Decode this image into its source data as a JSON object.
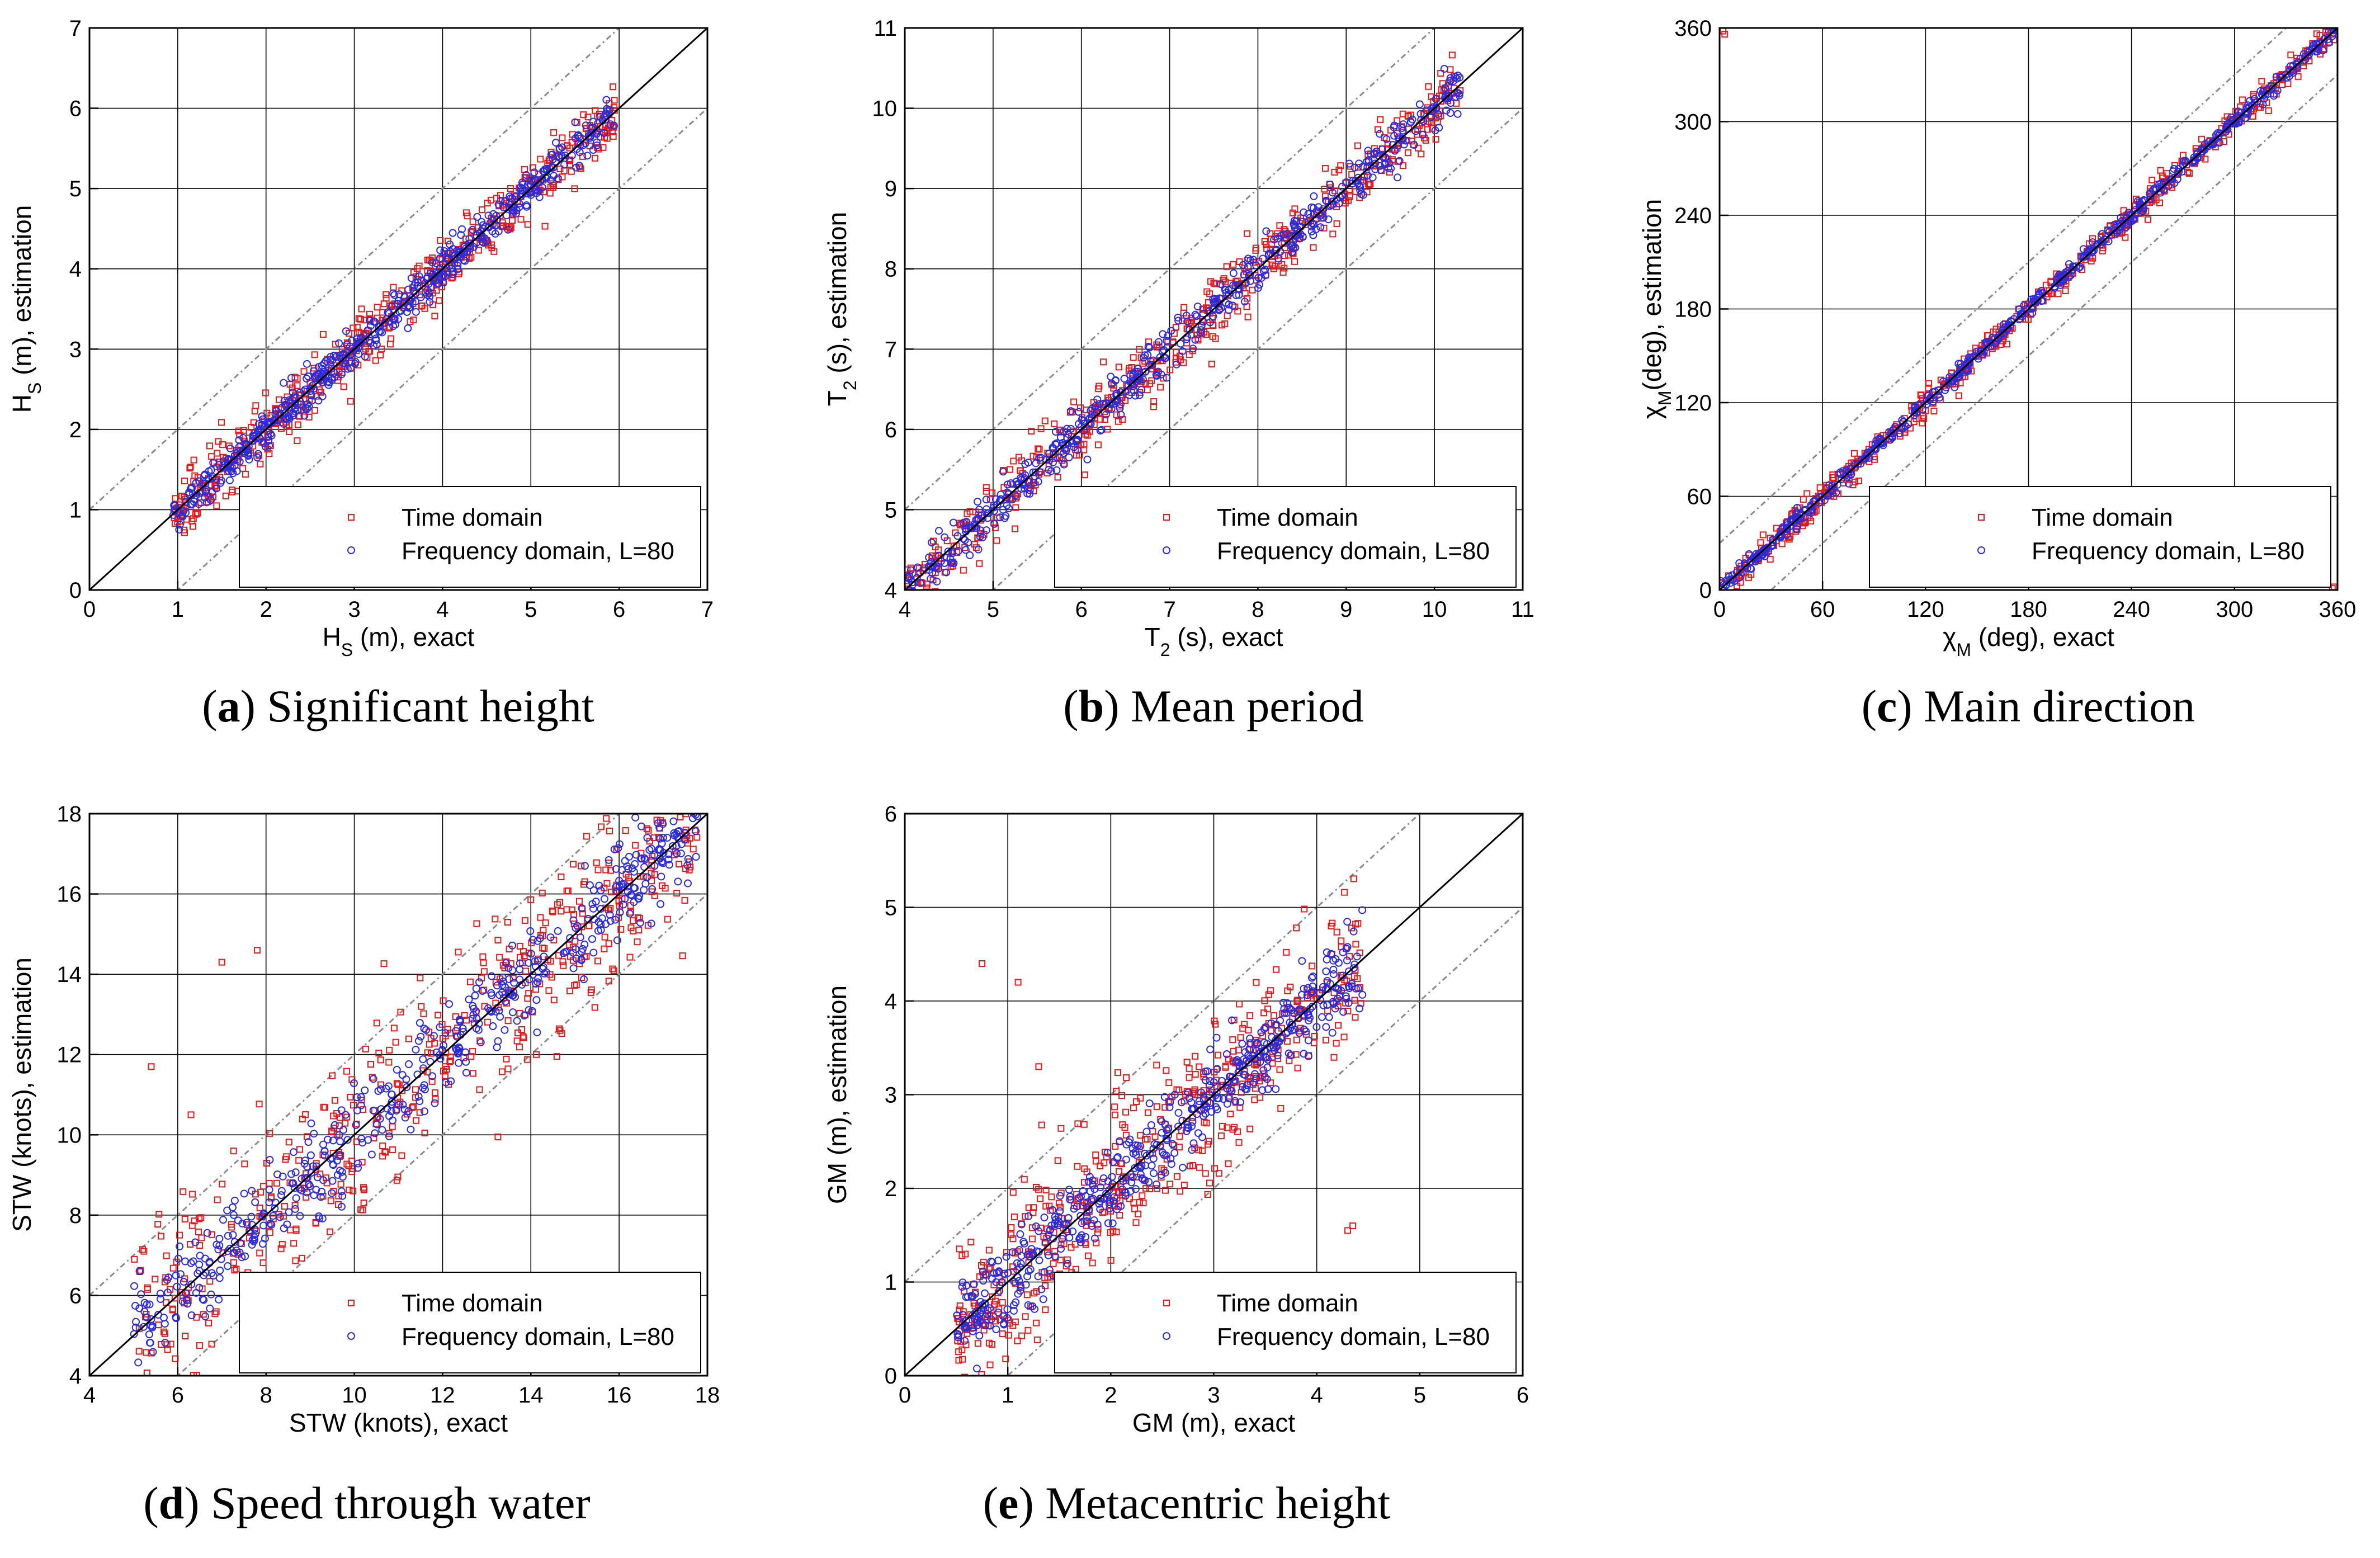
{
  "chart_data": [
    {
      "type": "scatter",
      "panel": "a",
      "caption_letter": "a",
      "caption_text": "Significant height",
      "xlabel_main": "H",
      "xlabel_sub": "S",
      "xlabel_rest": " (m), exact",
      "ylabel_main": "H",
      "ylabel_sub": "S",
      "ylabel_rest": " (m), estimation",
      "xlim": [
        0,
        7
      ],
      "ylim": [
        0,
        7
      ],
      "ticks": [
        "0",
        "1",
        "2",
        "3",
        "4",
        "5",
        "6",
        "7"
      ],
      "tick_values": [
        0,
        1,
        2,
        3,
        4,
        5,
        6,
        7
      ],
      "data_range": [
        0.95,
        5.95
      ],
      "band_offset": 1,
      "spread_time": 0.18,
      "spread_freq": 0.12,
      "outliers": [],
      "series": [
        {
          "name": "Time domain",
          "color": "#e31a1c",
          "marker": "square"
        },
        {
          "name": "Frequency domain, L=80",
          "color": "#2b2bd9",
          "marker": "circle"
        }
      ]
    },
    {
      "type": "scatter",
      "panel": "b",
      "caption_letter": "b",
      "caption_text": "Mean period",
      "xlabel_main": "T",
      "xlabel_sub": "2",
      "xlabel_rest": " (s), exact",
      "ylabel_main": "T",
      "ylabel_sub": "2",
      "ylabel_rest": " (s), estimation",
      "xlim": [
        4,
        11
      ],
      "ylim": [
        4,
        11
      ],
      "ticks": [
        "4",
        "5",
        "6",
        "7",
        "8",
        "9",
        "10",
        "11"
      ],
      "tick_values": [
        4,
        5,
        6,
        7,
        8,
        9,
        10,
        11
      ],
      "data_range": [
        4.0,
        10.3
      ],
      "band_offset": 1,
      "spread_time": 0.22,
      "spread_freq": 0.14,
      "outliers": [],
      "series": [
        {
          "name": "Time domain",
          "color": "#e31a1c",
          "marker": "square"
        },
        {
          "name": "Frequency domain, L=80",
          "color": "#2b2bd9",
          "marker": "circle"
        }
      ]
    },
    {
      "type": "scatter",
      "panel": "c",
      "caption_letter": "c",
      "caption_text": "Main direction",
      "xlabel_main": "χ",
      "xlabel_sub": "M",
      "xlabel_rest": " (deg), exact",
      "ylabel_main": "χ",
      "ylabel_sub": "M",
      "ylabel_rest": "(deg), estimation",
      "xlim": [
        0,
        360
      ],
      "ylim": [
        0,
        360
      ],
      "ticks": [
        "0",
        "60",
        "120",
        "180",
        "240",
        "300",
        "360"
      ],
      "tick_values": [
        0,
        60,
        120,
        180,
        240,
        300,
        360
      ],
      "data_range": [
        0,
        358
      ],
      "band_offset": 30,
      "spread_time": 4.5,
      "spread_freq": 2.5,
      "outliers": [
        [
          2,
          358
        ],
        [
          358,
          2
        ],
        [
          357,
          1
        ],
        [
          3,
          356
        ]
      ],
      "series": [
        {
          "name": "Time domain",
          "color": "#e31a1c",
          "marker": "square"
        },
        {
          "name": "Frequency domain, L=80",
          "color": "#2b2bd9",
          "marker": "circle"
        }
      ]
    },
    {
      "type": "scatter",
      "panel": "d",
      "caption_letter": "d",
      "caption_text": "Speed through water",
      "xlabel_main": "STW (knots), exact",
      "xlabel_sub": "",
      "xlabel_rest": "",
      "ylabel_main": "STW (knots), estimation",
      "ylabel_sub": "",
      "ylabel_rest": "",
      "xlim": [
        4,
        18
      ],
      "ylim": [
        4,
        18
      ],
      "ticks": [
        "4",
        "6",
        "8",
        "10",
        "12",
        "14",
        "16",
        "18"
      ],
      "tick_values": [
        4,
        6,
        8,
        10,
        12,
        14,
        16,
        18
      ],
      "data_range": [
        5.0,
        17.8
      ],
      "band_offset": 2,
      "spread_time": 1.1,
      "spread_freq": 0.55,
      "outliers": [
        [
          7.0,
          14.3
        ],
        [
          7.8,
          14.6
        ],
        [
          5.4,
          11.7
        ],
        [
          6.3,
          10.5
        ]
      ],
      "series": [
        {
          "name": "Time domain",
          "color": "#e31a1c",
          "marker": "square"
        },
        {
          "name": "Frequency domain, L=80",
          "color": "#2b2bd9",
          "marker": "circle"
        }
      ]
    },
    {
      "type": "scatter",
      "panel": "e",
      "caption_letter": "e",
      "caption_text": "Metacentric height",
      "xlabel_main": "GM (m), exact",
      "xlabel_sub": "",
      "xlabel_rest": "",
      "ylabel_main": "GM (m), estimation",
      "ylabel_sub": "",
      "ylabel_rest": "",
      "xlim": [
        0,
        6
      ],
      "ylim": [
        0,
        6
      ],
      "ticks": [
        "0",
        "1",
        "2",
        "3",
        "4",
        "5",
        "6"
      ],
      "tick_values": [
        0,
        1,
        2,
        3,
        4,
        5,
        6
      ],
      "data_range": [
        0.5,
        4.45
      ],
      "band_offset": 1,
      "spread_time": 0.42,
      "spread_freq": 0.22,
      "outliers": [
        [
          0.75,
          4.4
        ],
        [
          1.1,
          4.2
        ],
        [
          4.35,
          1.6
        ],
        [
          4.3,
          1.55
        ],
        [
          1.3,
          3.3
        ]
      ],
      "series": [
        {
          "name": "Time domain",
          "color": "#e31a1c",
          "marker": "square"
        },
        {
          "name": "Frequency domain, L=80",
          "color": "#2b2bd9",
          "marker": "circle"
        }
      ]
    }
  ]
}
